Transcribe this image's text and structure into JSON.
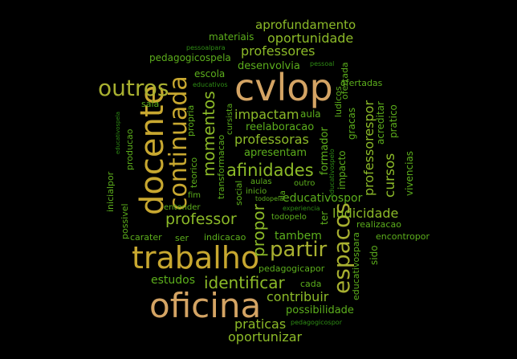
{
  "palette": {
    "background": "#000000",
    "tan": "#d4a464",
    "gold": "#c8a830",
    "olive": "#a8b030",
    "lime": "#8cba28",
    "green": "#5cae1c",
    "darkgreen": "#2e8c14"
  },
  "words": {
    "oficina": "oficina",
    "trabalho": "trabalho",
    "docente": "docente",
    "cvlop": "cvlop",
    "continuada": "continuada",
    "espacos": "espacos",
    "outros": "outros",
    "partir": "partir",
    "identificar": "identificar",
    "afinidades": "afinidades",
    "professor": "professor",
    "momentos": "momentos",
    "propor": "propor",
    "professoras": "professoras",
    "impactam": "impactam",
    "professores": "professores",
    "oportunidade": "oportunidade",
    "aprofundamento": "aprofundamento",
    "ludicidade": "ludicidade",
    "professorespor": "professorespor",
    "cursos": "cursos",
    "contribuir": "contribuir",
    "praticas": "praticas",
    "oportunizar": "oportunizar",
    "estudos": "estudos",
    "possibilidade": "possibilidade",
    "tambem": "tambem",
    "educativospor": "educativospor",
    "reelaboracao": "reelaboracao",
    "materiais": "materiais",
    "pedagogicospela": "pedagogicospela",
    "desenvolvia": "desenvolvia",
    "escola": "escola",
    "apresentam": "apresentam",
    "aula": "aula",
    "gracas": "gracas",
    "vivencias": "vivencias",
    "pratico": "pratico",
    "acreditar": "acreditar",
    "formador": "formador",
    "impacto": "impacto",
    "educativospara": "educativospara",
    "pedagogicapor": "pedagogicapor",
    "cada": "cada",
    "sido": "sido",
    "realizacao": "realizacao",
    "encontropor": "encontropor",
    "ter": "ter",
    "todopelo": "todopelo",
    "experiencia": "experiencia",
    "indicacao": "indicacao",
    "carater": "carater",
    "ser": "ser",
    "entender": "entender",
    "fim": "fim",
    "social": "social",
    "inicio": "inicio",
    "outro": "outro",
    "aulas": "aulas",
    "todopela": "todopela",
    "transformacao": "transformacao",
    "cursista": "cursista",
    "teorico": "teorico",
    "propria": "propria",
    "sala": "sala",
    "producao": "producao",
    "inicialpor": "inicialpor",
    "possivel": "possivel",
    "educativospela": "educativospela",
    "educativos": "educativos",
    "pessoalpara": "pessoalpara",
    "pessoal": "pessoal",
    "ofertada": "ofertada",
    "ofertadas": "ofertadas",
    "ludicos": "ludicos",
    "educativospelo": "educativospelo",
    "pedagogicospor": "pedagogicospor",
    "la": "la"
  }
}
